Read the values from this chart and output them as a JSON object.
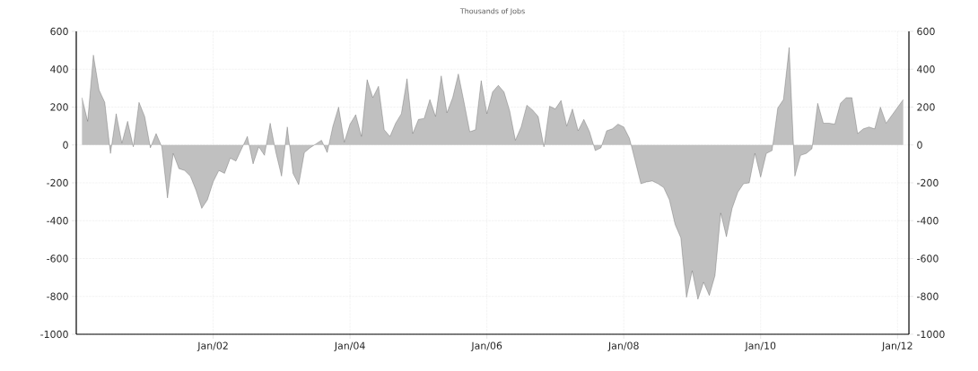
{
  "chart_data": {
    "type": "area",
    "subtitle": "Thousands of Jobs",
    "x": [
      "2000-02",
      "2000-03",
      "2000-04",
      "2000-05",
      "2000-06",
      "2000-07",
      "2000-08",
      "2000-09",
      "2000-10",
      "2000-11",
      "2000-12",
      "2001-01",
      "2001-02",
      "2001-03",
      "2001-04",
      "2001-05",
      "2001-06",
      "2001-07",
      "2001-08",
      "2001-09",
      "2001-10",
      "2001-11",
      "2001-12",
      "2002-01",
      "2002-02",
      "2002-03",
      "2002-04",
      "2002-05",
      "2002-07",
      "2002-08",
      "2002-09",
      "2002-10",
      "2002-11",
      "2002-12",
      "2003-01",
      "2003-02",
      "2003-03",
      "2003-04",
      "2003-05",
      "2003-06",
      "2003-08",
      "2003-09",
      "2003-10",
      "2003-11",
      "2003-12",
      "2004-01",
      "2004-02",
      "2004-03",
      "2004-04",
      "2004-05",
      "2004-06",
      "2004-07",
      "2004-08",
      "2004-09",
      "2004-10",
      "2004-11",
      "2004-12",
      "2005-01",
      "2005-02",
      "2005-03",
      "2005-04",
      "2005-05",
      "2005-06",
      "2005-07",
      "2005-08",
      "2005-09",
      "2005-10",
      "2005-11",
      "2005-12",
      "2006-01",
      "2006-02",
      "2006-03",
      "2006-04",
      "2006-05",
      "2006-06",
      "2006-07",
      "2006-08",
      "2006-09",
      "2006-10",
      "2006-11",
      "2006-12",
      "2007-01",
      "2007-02",
      "2007-03",
      "2007-04",
      "2007-05",
      "2007-06",
      "2007-07",
      "2007-08",
      "2007-09",
      "2007-10",
      "2007-11",
      "2007-12",
      "2008-01",
      "2008-02",
      "2008-03",
      "2008-04",
      "2008-05",
      "2008-06",
      "2008-07",
      "2008-08",
      "2008-09",
      "2008-10",
      "2008-11",
      "2008-12",
      "2009-01",
      "2009-02",
      "2009-03",
      "2009-04",
      "2009-05",
      "2009-06",
      "2009-07",
      "2009-08",
      "2009-09",
      "2009-10",
      "2009-11",
      "2009-12",
      "2010-01",
      "2010-02",
      "2010-03",
      "2010-04",
      "2010-05",
      "2010-06",
      "2010-07",
      "2010-08",
      "2010-09",
      "2010-10",
      "2010-11",
      "2010-12",
      "2011-01",
      "2011-02",
      "2011-03",
      "2011-04",
      "2011-05",
      "2011-06",
      "2011-07",
      "2011-08",
      "2011-09",
      "2011-10",
      "2011-11",
      "2012-02"
    ],
    "series": [
      {
        "color": "#c0c0c0",
        "values": [
          250,
          125,
          475,
          290,
          225,
          -45,
          165,
          10,
          125,
          -10,
          225,
          150,
          -15,
          60,
          -10,
          -280,
          -45,
          -125,
          -135,
          -165,
          -240,
          -335,
          -290,
          -195,
          -135,
          -150,
          -70,
          -85,
          45,
          -100,
          -10,
          -55,
          115,
          -40,
          -165,
          95,
          -150,
          -210,
          -40,
          -15,
          25,
          -40,
          100,
          200,
          15,
          110,
          160,
          45,
          345,
          250,
          310,
          80,
          45,
          115,
          165,
          350,
          60,
          135,
          140,
          240,
          150,
          365,
          170,
          250,
          375,
          225,
          70,
          80,
          340,
          165,
          280,
          315,
          280,
          180,
          25,
          95,
          210,
          185,
          150,
          -10,
          205,
          190,
          235,
          100,
          190,
          75,
          135,
          70,
          -30,
          -15,
          75,
          85,
          110,
          95,
          35,
          -85,
          -205,
          -195,
          -190,
          -205,
          -225,
          -290,
          -420,
          -490,
          -805,
          -665,
          -815,
          -725,
          -795,
          -690,
          -360,
          -485,
          -335,
          -250,
          -205,
          -200,
          -45,
          -170,
          -45,
          -30,
          195,
          240,
          515,
          -165,
          -55,
          -45,
          -20,
          220,
          115,
          115,
          110,
          220,
          250,
          250,
          60,
          85,
          95,
          85,
          200,
          115,
          240
        ]
      }
    ],
    "xlim": [
      "2000-01",
      "2012-03"
    ],
    "xticks": [
      {
        "value": "2002-01",
        "label": "Jan/02"
      },
      {
        "value": "2004-01",
        "label": "Jan/04"
      },
      {
        "value": "2006-01",
        "label": "Jan/06"
      },
      {
        "value": "2008-01",
        "label": "Jan/08"
      },
      {
        "value": "2010-01",
        "label": "Jan/10"
      },
      {
        "value": "2012-01",
        "label": "Jan/12"
      }
    ],
    "ylim": [
      -1000,
      600
    ],
    "yticks": [
      -1000,
      -800,
      -600,
      -400,
      -200,
      0,
      200,
      400,
      600
    ],
    "y2lim": [
      -1000,
      600
    ],
    "y2ticks": [
      -1000,
      -800,
      -600,
      -400,
      -200,
      0,
      200,
      400,
      600
    ],
    "grid": true
  }
}
